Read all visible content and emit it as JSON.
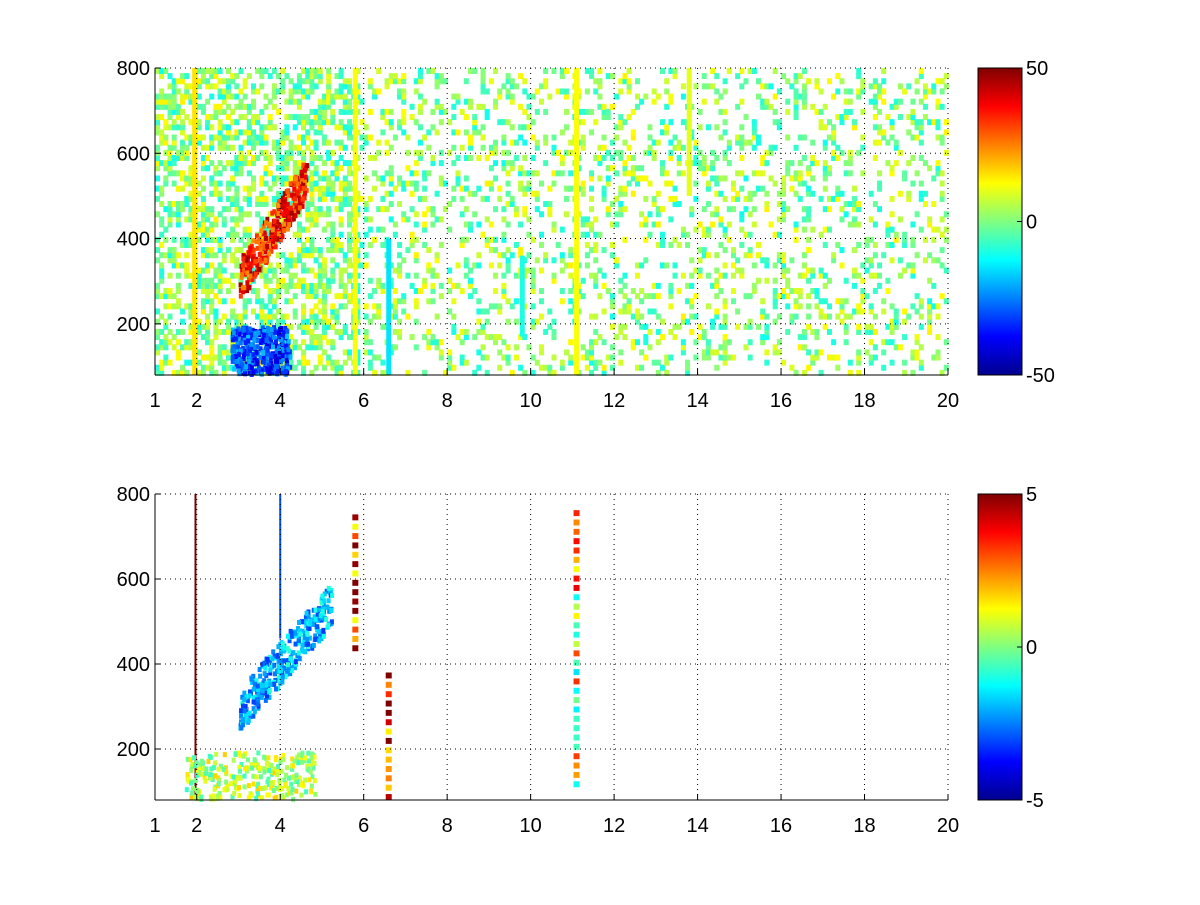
{
  "chart_data": [
    {
      "type": "heatmap",
      "x_ticks": [
        "1",
        "2",
        "4",
        "6",
        "8",
        "10",
        "12",
        "14",
        "16",
        "18",
        "20"
      ],
      "x_tick_values": [
        1,
        2,
        4,
        6,
        8,
        10,
        12,
        14,
        16,
        18,
        20
      ],
      "y_ticks": [
        "200",
        "400",
        "600",
        "800"
      ],
      "y_tick_values": [
        200,
        400,
        600,
        800
      ],
      "xlim": [
        1,
        20
      ],
      "ylim": [
        80,
        800
      ],
      "grid": true,
      "colormap": "jet",
      "colorbar": {
        "ticks": [
          "50",
          "0",
          "-50"
        ],
        "range": [
          -50,
          50
        ]
      },
      "features": [
        {
          "kind": "vertical-band",
          "x": 11.1,
          "y_range": [
            80,
            800
          ],
          "value": 12
        },
        {
          "kind": "vertical-band",
          "x": 13.8,
          "y_range": [
            500,
            800
          ],
          "value": 10
        },
        {
          "kind": "vertical-band",
          "x": 5.8,
          "y_range": [
            80,
            800
          ],
          "value": 12
        },
        {
          "kind": "vertical-band",
          "x": 1.95,
          "y_range": [
            80,
            800
          ],
          "value": 15
        },
        {
          "kind": "vertical-band",
          "x": 9.8,
          "y_range": [
            170,
            360
          ],
          "value": -10
        },
        {
          "kind": "vertical-band",
          "x": 6.6,
          "y_range": [
            80,
            400
          ],
          "value": -15
        },
        {
          "kind": "warm-ridge",
          "x_range": [
            3.0,
            4.6
          ],
          "y_range": [
            280,
            560
          ],
          "value": 35
        },
        {
          "kind": "cold-region",
          "x_range": [
            2.8,
            4.2
          ],
          "y_range": [
            80,
            190
          ],
          "value": -30
        }
      ]
    },
    {
      "type": "heatmap",
      "x_ticks": [
        "1",
        "2",
        "4",
        "6",
        "8",
        "10",
        "12",
        "14",
        "16",
        "18",
        "20"
      ],
      "x_tick_values": [
        1,
        2,
        4,
        6,
        8,
        10,
        12,
        14,
        16,
        18,
        20
      ],
      "y_ticks": [
        "200",
        "400",
        "600",
        "800"
      ],
      "y_tick_values": [
        200,
        400,
        600,
        800
      ],
      "xlim": [
        1,
        20
      ],
      "ylim": [
        80,
        800
      ],
      "grid": true,
      "colormap": "jet",
      "colorbar": {
        "ticks": [
          "5",
          "0",
          "-5"
        ],
        "range": [
          -5,
          5
        ]
      },
      "features": [
        {
          "kind": "vertical-line",
          "x": 1.97,
          "y_range": [
            80,
            800
          ],
          "value": 5
        },
        {
          "kind": "vertical-line",
          "x": 4.0,
          "y_range": [
            460,
            800
          ],
          "value": -3
        },
        {
          "kind": "dashed-column",
          "x": 11.1,
          "y_range": [
            110,
            760
          ],
          "value": 1
        },
        {
          "kind": "dashed-column",
          "x": 6.6,
          "y_range": [
            80,
            370
          ],
          "value": 4
        },
        {
          "kind": "dashed-column",
          "x": 5.8,
          "y_range": [
            430,
            760
          ],
          "value": 4
        },
        {
          "kind": "cool-ridge",
          "x_range": [
            3.0,
            5.2
          ],
          "y_range": [
            270,
            560
          ],
          "value": -2
        },
        {
          "kind": "green-block",
          "x_range": [
            1.7,
            4.8
          ],
          "y_range": [
            80,
            190
          ],
          "value": 0.5
        }
      ]
    }
  ]
}
